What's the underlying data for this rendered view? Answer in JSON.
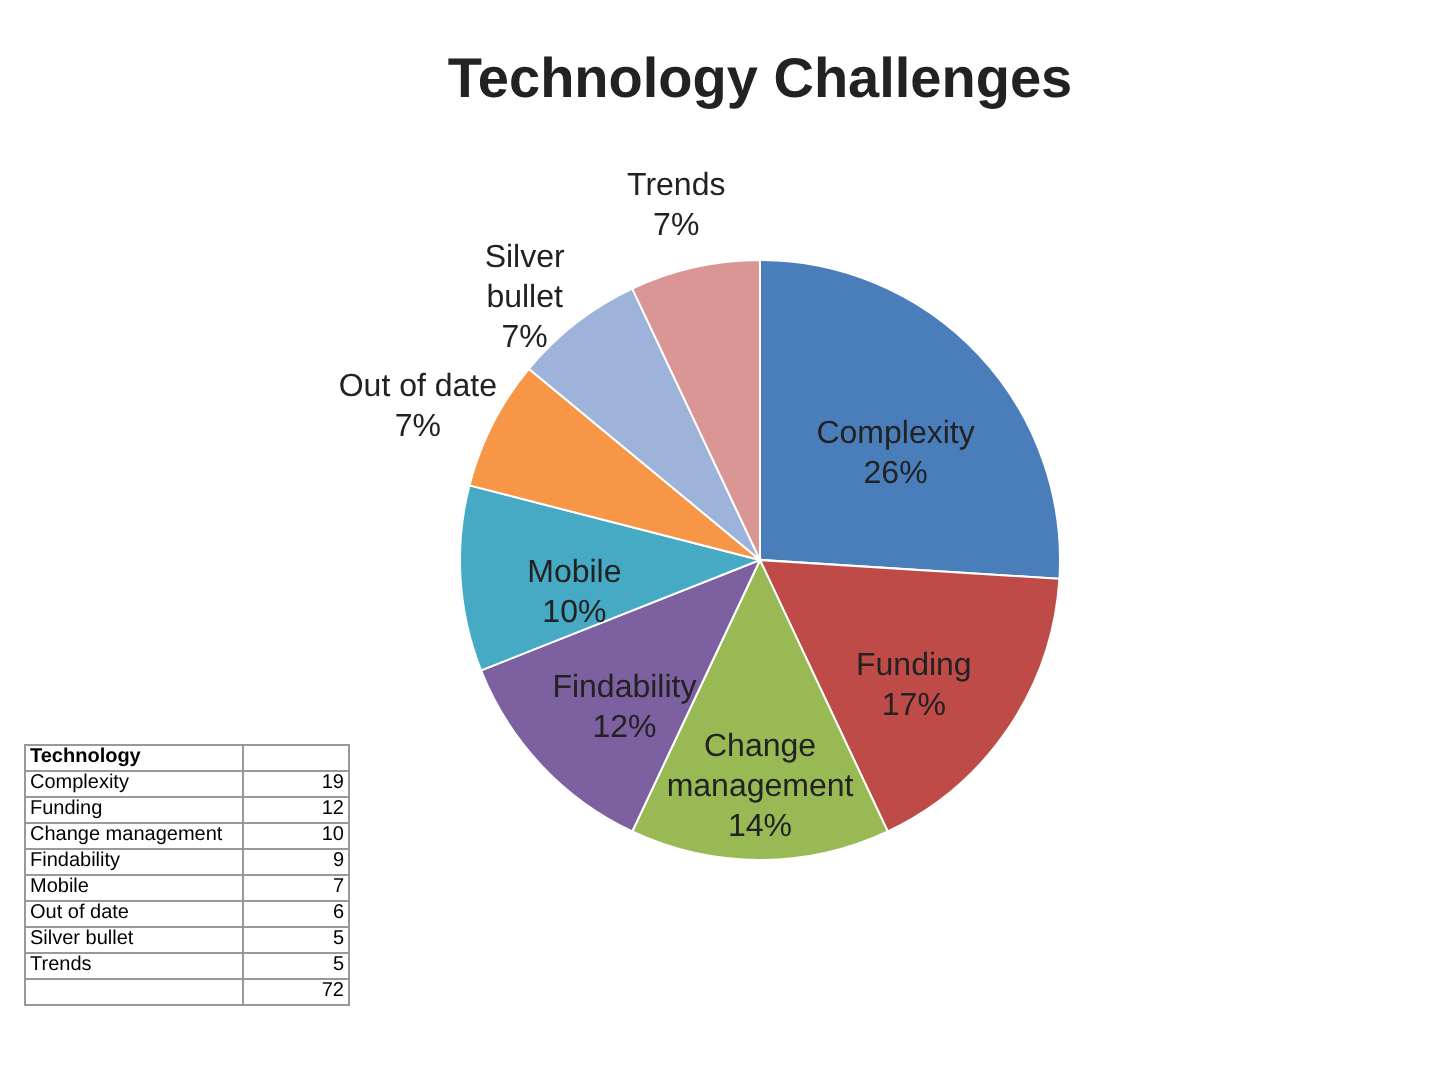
{
  "chart_data": [
    {
      "type": "pie",
      "title": "Technology Challenges",
      "categories": [
        "Complexity",
        "Funding",
        "Change management",
        "Findability",
        "Mobile",
        "Out of date",
        "Silver bullet",
        "Trends"
      ],
      "values": [
        26,
        17,
        14,
        12,
        10,
        7,
        7,
        7
      ],
      "value_labels": [
        "26%",
        "17%",
        "14%",
        "12%",
        "10%",
        "7%",
        "7%",
        "7%"
      ],
      "colors": [
        "#4a7ebb",
        "#be4b48",
        "#98b954",
        "#7d60a0",
        "#46aac5",
        "#f79646",
        "#9db3da",
        "#d99694"
      ]
    },
    {
      "type": "other",
      "title": "Technology",
      "categories": [
        "Complexity",
        "Funding",
        "Change management",
        "Findability",
        "Mobile",
        "Out of date",
        "Silver bullet",
        "Trends"
      ],
      "values": [
        19,
        12,
        10,
        9,
        7,
        6,
        5,
        5
      ],
      "data_labels": true,
      "annotations": [
        "72"
      ]
    }
  ]
}
